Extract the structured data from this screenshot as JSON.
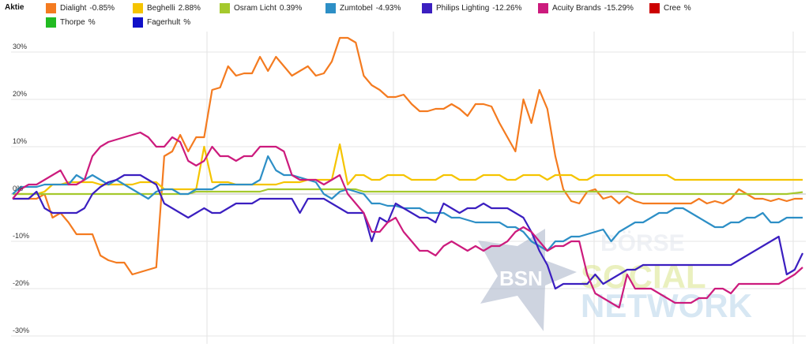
{
  "legend": {
    "title": "Aktie"
  },
  "watermark": {
    "badge": "BSN",
    "line1": "BÖRSE",
    "line2": "SOCIAL",
    "line3": "NETWORK"
  },
  "chart_data": {
    "type": "line",
    "ylim": [
      -30,
      35
    ],
    "yticks": [
      30,
      20,
      10,
      0,
      -10,
      -20,
      -30
    ],
    "ytick_labels": [
      "30%",
      "20%",
      "10%",
      "0%",
      "-10%",
      "-20%",
      "-30%"
    ],
    "x_count": 100,
    "grid": true,
    "legend_position": "top",
    "series": [
      {
        "name": "Dialight",
        "value_label": "-0.85%",
        "color": "#f47b20",
        "values": [
          -1,
          -1,
          -1,
          -1,
          0,
          -5,
          -4,
          -6,
          -8.5,
          -8.5,
          -8.5,
          -13,
          -14,
          -14.5,
          -14.5,
          -17,
          -16.5,
          -16,
          -15.5,
          8,
          9,
          12.5,
          9,
          12,
          12,
          22,
          22.5,
          27,
          25,
          25.5,
          25.5,
          29,
          26,
          29,
          27,
          25,
          26,
          27,
          25,
          25.5,
          28,
          33,
          33,
          32,
          25,
          23,
          22,
          20.5,
          20.5,
          21,
          19,
          17.5,
          17.5,
          18,
          18,
          19,
          18,
          16.5,
          19,
          19,
          18.5,
          15,
          12,
          9,
          20,
          15,
          22,
          18,
          8,
          1,
          -1.5,
          -2,
          0.5,
          1,
          -1,
          -0.5,
          -2,
          -0.5,
          -1.5,
          -2,
          -2,
          -2,
          -2,
          -2,
          -2,
          -2,
          -1,
          -2,
          -1.5,
          -2,
          -1,
          1,
          0,
          -1,
          -1,
          -1.5,
          -1,
          -1.5,
          -1,
          -1
        ]
      },
      {
        "name": "Beghelli",
        "value_label": "2.88%",
        "color": "#f5c400",
        "values": [
          0,
          0,
          0,
          0,
          0.5,
          2,
          2,
          2.5,
          2.5,
          2.5,
          2.5,
          2,
          2,
          2,
          2,
          2,
          2.5,
          2.5,
          2.5,
          1,
          1,
          1,
          1,
          1,
          10,
          2.5,
          2.5,
          2.5,
          2,
          2,
          2,
          2,
          2,
          2,
          2.5,
          2.5,
          2.5,
          3,
          3,
          3,
          3,
          10.5,
          2,
          4,
          4,
          3,
          3,
          4,
          4,
          4,
          3,
          3,
          3,
          3,
          4,
          4,
          3,
          3,
          3,
          4,
          4,
          4,
          3,
          3,
          4,
          4,
          4,
          3,
          4,
          4,
          4,
          3,
          3,
          4,
          4,
          4,
          4,
          4,
          4,
          4,
          4,
          4,
          4,
          3,
          3,
          3,
          3,
          3,
          3,
          3,
          3,
          3,
          3,
          3,
          3,
          3,
          3,
          3,
          3,
          3
        ]
      },
      {
        "name": "Osram Licht",
        "value_label": "0.39%",
        "color": "#a5c92d",
        "values": [
          0,
          0,
          0,
          0,
          0,
          0,
          0,
          0,
          0,
          0,
          0,
          0,
          0,
          0,
          0,
          0,
          0,
          0,
          0,
          0,
          0,
          0,
          0,
          0.5,
          0.5,
          0.5,
          0.5,
          0.5,
          0.5,
          0.5,
          0.5,
          0.5,
          1,
          1,
          1,
          1,
          1,
          1,
          1,
          1,
          1,
          1,
          1,
          1,
          0.5,
          0.5,
          0.5,
          0.5,
          0.5,
          0.5,
          0.5,
          0.5,
          0.5,
          0.5,
          0.5,
          0.5,
          0.5,
          0.5,
          0.5,
          0.5,
          0.5,
          0.5,
          0.5,
          0.5,
          0.5,
          0.5,
          0.5,
          0.5,
          0.5,
          0.5,
          0.5,
          0.5,
          0.5,
          0.5,
          0.5,
          0.5,
          0.5,
          0.5,
          0,
          0,
          0,
          0,
          0,
          0,
          0,
          0,
          0,
          0,
          0,
          0,
          0,
          0,
          0,
          0,
          0,
          0,
          0,
          0,
          0.2,
          0.4
        ]
      },
      {
        "name": "Zumtobel",
        "value_label": "-4.93%",
        "color": "#2d8fc6",
        "values": [
          0,
          1.5,
          1.5,
          1.5,
          2,
          2,
          2,
          2,
          4,
          3,
          4,
          3,
          2,
          3,
          2,
          1,
          0,
          -1,
          0.5,
          1,
          1,
          0,
          0,
          1,
          1,
          1,
          2,
          2,
          2,
          2,
          2,
          3,
          8,
          5,
          4,
          4,
          3.5,
          3,
          2.5,
          0,
          -1,
          0.5,
          1,
          0.5,
          0,
          -2,
          -2,
          -2.5,
          -2.5,
          -3,
          -3,
          -3,
          -4,
          -4,
          -4,
          -5,
          -5,
          -5.5,
          -6,
          -6,
          -6,
          -6,
          -7,
          -7,
          -8,
          -10,
          -11,
          -12,
          -10,
          -10,
          -9,
          -9,
          -8.5,
          -8,
          -7.5,
          -10,
          -8,
          -7,
          -6,
          -6,
          -5,
          -4,
          -4,
          -3,
          -3,
          -4,
          -5,
          -6,
          -7,
          -7,
          -6,
          -6,
          -5,
          -5,
          -4,
          -6,
          -6,
          -5,
          -5,
          -5
        ]
      },
      {
        "name": "Philips Lighting",
        "value_label": "-12.26%",
        "color": "#3b1fc0",
        "values": [
          -1,
          -1,
          -1,
          0.5,
          -3,
          -4,
          -4,
          -4,
          -4,
          -3,
          0,
          1.5,
          2.5,
          3,
          4,
          4,
          4,
          3,
          2,
          -2,
          -3,
          -4,
          -5,
          -4,
          -3,
          -4,
          -4,
          -3,
          -2,
          -2,
          -2,
          -1,
          -1,
          -1,
          -1,
          -1,
          -4,
          -1,
          -1,
          -1,
          -2,
          -3,
          -4,
          -4,
          -4,
          -10,
          -5,
          -6,
          -2,
          -3,
          -4,
          -5,
          -5,
          -6,
          -2,
          -3,
          -4,
          -3,
          -3,
          -2,
          -3,
          -3,
          -3,
          -4,
          -5,
          -8,
          -12,
          -15,
          -20,
          -19,
          -19,
          -19,
          -19,
          -17,
          -19,
          -18,
          -17,
          -16,
          -16,
          -15,
          -15,
          -15,
          -15,
          -15,
          -15,
          -15,
          -15,
          -15,
          -15,
          -15,
          -15,
          -14,
          -13,
          -12,
          -11,
          -10,
          -9,
          -17,
          -16,
          -12.5
        ]
      },
      {
        "name": "Acuity Brands",
        "value_label": "-15.29%",
        "color": "#cc1b7d",
        "values": [
          -1,
          1,
          2,
          2,
          3,
          4,
          5,
          2,
          2,
          3,
          8,
          10,
          11,
          11.5,
          12,
          12.5,
          13,
          12,
          10,
          10,
          12,
          11,
          7,
          6,
          7,
          10,
          8,
          8,
          7,
          8,
          8,
          10,
          10,
          10,
          9,
          4,
          3,
          3,
          3,
          2,
          3,
          4,
          0,
          -2,
          -4,
          -8,
          -8,
          -6,
          -5,
          -8,
          -10,
          -12,
          -12,
          -13,
          -11,
          -10,
          -11,
          -12,
          -11,
          -12,
          -11,
          -11,
          -10,
          -8,
          -7,
          -8,
          -10,
          -12,
          -11,
          -11,
          -10,
          -10,
          -17,
          -21,
          -22,
          -23,
          -24,
          -17,
          -20,
          -20,
          -20,
          -21,
          -22,
          -23,
          -23,
          -23,
          -22,
          -22,
          -20,
          -20,
          -21,
          -19,
          -19,
          -19,
          -19,
          -19,
          -19,
          -18,
          -17,
          -15.5
        ]
      },
      {
        "name": "Cree",
        "value_label": "%",
        "color": "#cc0000",
        "values": []
      },
      {
        "name": "Thorpe",
        "value_label": "%",
        "color": "#22bb22",
        "values": []
      },
      {
        "name": "Fagerhult",
        "value_label": "%",
        "color": "#1010c8",
        "values": []
      }
    ]
  }
}
